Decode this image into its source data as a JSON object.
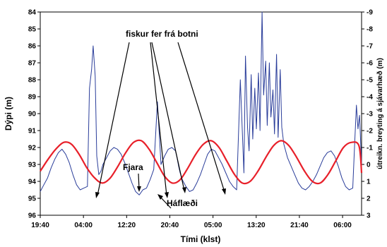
{
  "chart_data": {
    "type": "line",
    "xlabel": "Tími (klst)",
    "ylabel_left": "Dýpi (m)",
    "ylabel_right": "útreikn. breyting á sjávarhæð (m)",
    "x_ticks": [
      "19:40",
      "04:00",
      "12:20",
      "20:40",
      "05:00",
      "13:20",
      "21:40",
      "06:00"
    ],
    "x_tick_hours": [
      0,
      8.333,
      16.667,
      25,
      33.333,
      41.667,
      50,
      58.333
    ],
    "xlim_hours": [
      0,
      62
    ],
    "left_axis": {
      "ylim": [
        84,
        96
      ],
      "inverted": true,
      "ticks": [
        84,
        85,
        86,
        87,
        88,
        89,
        90,
        91,
        92,
        93,
        94,
        95,
        96
      ]
    },
    "right_axis": {
      "ylim": [
        -9,
        3
      ],
      "inverted": false,
      "ticks": [
        "-9",
        "-8",
        "-7",
        "-6",
        "-5",
        "-4",
        "-3",
        "-2",
        "-1",
        "0",
        "1",
        "2",
        "3"
      ]
    },
    "series": [
      {
        "axis": "right",
        "color": "#e8202a",
        "style": "smooth",
        "x": [
          0,
          1.5,
          3,
          4.5,
          6,
          7.5,
          9,
          10.5,
          12,
          13.5,
          15,
          16.5,
          18,
          19.5,
          21,
          22.5,
          24,
          25.5,
          27,
          28.5,
          30,
          31.5,
          33,
          34.5,
          36,
          37.5,
          39,
          40.5,
          42,
          43.5,
          45,
          46.5,
          48,
          49.5,
          51,
          52.5,
          54,
          55.5,
          57,
          58.5,
          60,
          61.5,
          62
        ],
        "y": [
          0.4,
          -0.3,
          -0.9,
          -1.3,
          -1.2,
          -0.6,
          0.2,
          0.8,
          1.1,
          0.8,
          0.1,
          -0.7,
          -1.3,
          -1.4,
          -0.9,
          -0.1,
          0.7,
          1.1,
          0.9,
          0.2,
          -0.6,
          -1.2,
          -1.4,
          -1.0,
          -0.2,
          0.6,
          1.1,
          1.0,
          0.4,
          -0.4,
          -1.1,
          -1.4,
          -1.1,
          -0.4,
          0.4,
          1.0,
          1.1,
          0.6,
          -0.2,
          -1.0,
          -1.3,
          -1.1,
          0.5
        ]
      },
      {
        "axis": "left",
        "color": "#2a3d9a",
        "style": "raw",
        "x": [
          0,
          0.7,
          1.4,
          2.1,
          2.8,
          3.5,
          4.2,
          4.9,
          5.6,
          6.3,
          7.0,
          7.7,
          8.4,
          9.1,
          9.5,
          9.9,
          10.2,
          10.6,
          10.9,
          11.3,
          11.7,
          12.1,
          12.8,
          13.5,
          14.2,
          14.9,
          15.6,
          16.3,
          17.0,
          17.7,
          18.4,
          19.1,
          19.8,
          20.5,
          21.2,
          21.9,
          22.6,
          23.3,
          24.0,
          24.7,
          25.4,
          26.1,
          26.4,
          26.7,
          27.0,
          27.4,
          28.1,
          28.8,
          29.5,
          30.2,
          30.9,
          31.6,
          32.3,
          33.0,
          33.7,
          34.4,
          35.1,
          35.8,
          36.5,
          37.2,
          37.9,
          38.6,
          39.3,
          39.6,
          40.0,
          40.3,
          40.7,
          41.0,
          41.4,
          41.7,
          42.1,
          42.4,
          42.8,
          43.1,
          43.5,
          43.8,
          44.2,
          44.5,
          44.9,
          45.2,
          45.6,
          45.9,
          46.3,
          46.6,
          47.0,
          47.7,
          48.4,
          49.1,
          49.8,
          50.5,
          51.2,
          51.9,
          52.6,
          53.3,
          54.0,
          54.7,
          55.4,
          56.1,
          56.8,
          57.5,
          58.2,
          58.9,
          59.6,
          60.3,
          60.7,
          61.0,
          61.3,
          61.6,
          62.0
        ],
        "y": [
          94.6,
          94.2,
          93.8,
          93.2,
          92.7,
          92.3,
          92.1,
          92.4,
          92.9,
          93.6,
          94.2,
          94.5,
          94.4,
          94.3,
          88.5,
          87.4,
          86.0,
          87.8,
          92.5,
          93.6,
          93.4,
          93.0,
          92.6,
          92.2,
          92.0,
          92.1,
          92.4,
          92.9,
          93.5,
          94.1,
          94.6,
          94.8,
          94.5,
          94.4,
          93.9,
          93.3,
          89.3,
          93.0,
          92.5,
          92.1,
          92.0,
          92.2,
          92.6,
          93.1,
          93.5,
          93.9,
          94.3,
          94.6,
          94.5,
          94.1,
          93.6,
          93.0,
          92.4,
          92.1,
          92.2,
          92.6,
          93.0,
          93.5,
          94.0,
          94.3,
          94.5,
          88.0,
          93.5,
          86.6,
          90.8,
          92.2,
          87.7,
          91.5,
          88.5,
          90.9,
          87.6,
          91.0,
          84.0,
          88.9,
          86.9,
          90.7,
          87.0,
          90.2,
          88.6,
          91.2,
          86.5,
          91.4,
          87.4,
          90.8,
          91.8,
          92.6,
          93.1,
          93.6,
          94.1,
          94.4,
          94.5,
          94.3,
          94.0,
          93.6,
          93.1,
          92.6,
          92.3,
          92.2,
          92.5,
          93.1,
          93.8,
          94.3,
          94.5,
          94.4,
          91.5,
          89.5,
          90.9,
          90.1,
          93.0
        ]
      }
    ],
    "annotations": [
      {
        "text": "fiskur fer frá botni"
      },
      {
        "text": "Fjara"
      },
      {
        "text": "Háflæði"
      }
    ]
  }
}
